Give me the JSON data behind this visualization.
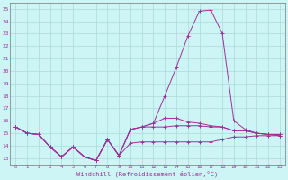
{
  "x": [
    0,
    1,
    2,
    3,
    4,
    5,
    6,
    7,
    8,
    9,
    10,
    11,
    12,
    13,
    14,
    15,
    16,
    17,
    18,
    19,
    20,
    21,
    22,
    23
  ],
  "line1": [
    15.5,
    15.0,
    14.9,
    13.9,
    13.1,
    13.9,
    13.1,
    12.8,
    14.5,
    13.2,
    14.2,
    14.3,
    14.3,
    14.3,
    14.3,
    14.3,
    14.3,
    14.3,
    14.5,
    14.7,
    14.7,
    14.8,
    14.8,
    14.8
  ],
  "line2": [
    15.5,
    15.0,
    14.9,
    13.9,
    13.1,
    13.9,
    13.1,
    12.8,
    14.5,
    13.2,
    15.3,
    15.5,
    15.5,
    15.5,
    15.6,
    15.6,
    15.6,
    15.5,
    15.5,
    15.2,
    15.2,
    15.0,
    14.9,
    14.9
  ],
  "line3": [
    15.5,
    15.0,
    14.9,
    13.9,
    13.1,
    13.9,
    13.1,
    12.8,
    14.5,
    13.2,
    15.3,
    15.5,
    15.8,
    16.2,
    16.2,
    15.9,
    15.8,
    15.6,
    15.5,
    15.2,
    15.2,
    15.0,
    14.9,
    14.9
  ],
  "line4": [
    15.5,
    15.0,
    14.9,
    13.9,
    13.1,
    13.9,
    13.1,
    12.8,
    14.5,
    13.2,
    15.3,
    15.5,
    15.8,
    18.0,
    20.3,
    22.8,
    24.8,
    24.9,
    23.0,
    16.0,
    15.3,
    15.0,
    14.9,
    14.8
  ],
  "bg_color": "#cef5f5",
  "grid_color": "#aadada",
  "line_color": "#993399",
  "ylabel_ticks": [
    13,
    14,
    15,
    16,
    17,
    18,
    19,
    20,
    21,
    22,
    23,
    24,
    25
  ],
  "xlabel": "Windchill (Refroidissement éolien,°C)",
  "ylim": [
    12.5,
    25.5
  ],
  "xlim": [
    -0.5,
    23.5
  ]
}
